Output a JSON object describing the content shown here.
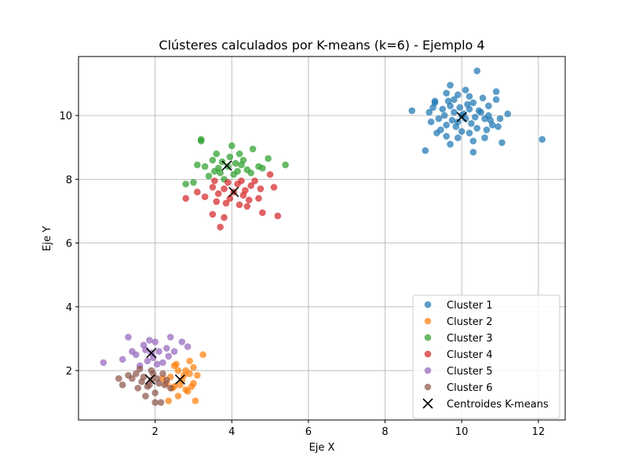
{
  "chart_data": {
    "type": "scatter",
    "title": "Clústeres calculados por K-means (k=6) - Ejemplo 4",
    "xlabel": "Eje X",
    "ylabel": "Eje Y",
    "xlim": [
      0.0,
      12.7
    ],
    "ylim": [
      0.45,
      11.85
    ],
    "xticks": [
      2,
      4,
      6,
      8,
      10,
      12
    ],
    "yticks": [
      2,
      4,
      6,
      8,
      10
    ],
    "grid": true,
    "legend_position": "lower-right",
    "series": [
      {
        "name": "Cluster 1",
        "color": "#1f77b4",
        "points": [
          [
            10.0,
            10.0
          ],
          [
            9.8,
            10.1
          ],
          [
            10.2,
            10.2
          ],
          [
            9.9,
            9.8
          ],
          [
            10.1,
            9.9
          ],
          [
            9.7,
            10.3
          ],
          [
            10.3,
            10.4
          ],
          [
            9.6,
            9.7
          ],
          [
            10.4,
            9.6
          ],
          [
            10.5,
            10.1
          ],
          [
            9.5,
            10.2
          ],
          [
            10.2,
            10.6
          ],
          [
            9.8,
            10.5
          ],
          [
            10.6,
            9.9
          ],
          [
            9.4,
            9.9
          ],
          [
            10.0,
            9.5
          ],
          [
            10.7,
            10.3
          ],
          [
            9.3,
            10.4
          ],
          [
            10.1,
            10.8
          ],
          [
            9.9,
            9.3
          ],
          [
            10.8,
            9.7
          ],
          [
            9.2,
            9.8
          ],
          [
            10.3,
            9.2
          ],
          [
            9.7,
            9.1
          ],
          [
            10.9,
            10.5
          ],
          [
            9.6,
            10.7
          ],
          [
            10.4,
            11.4
          ],
          [
            9.7,
            10.95
          ],
          [
            11.2,
            10.05
          ],
          [
            8.7,
            10.15
          ],
          [
            9.05,
            8.9
          ],
          [
            10.3,
            8.85
          ],
          [
            12.1,
            9.25
          ],
          [
            11.05,
            9.15
          ],
          [
            10.9,
            10.75
          ],
          [
            9.3,
            10.45
          ],
          [
            10.6,
            9.3
          ],
          [
            9.85,
            9.65
          ],
          [
            10.15,
            10.35
          ],
          [
            9.55,
            10.0
          ],
          [
            10.45,
            10.15
          ],
          [
            9.95,
            10.25
          ],
          [
            10.25,
            9.75
          ],
          [
            9.75,
            9.85
          ],
          [
            10.05,
            10.05
          ],
          [
            10.55,
            10.55
          ],
          [
            9.45,
            9.55
          ],
          [
            10.75,
            9.85
          ],
          [
            9.25,
            10.25
          ],
          [
            10.65,
            9.55
          ],
          [
            9.65,
            10.45
          ],
          [
            10.35,
            9.95
          ],
          [
            9.9,
            10.65
          ],
          [
            10.95,
            9.65
          ],
          [
            9.35,
            9.45
          ],
          [
            10.2,
            9.45
          ],
          [
            9.6,
            9.35
          ],
          [
            10.7,
            10.0
          ],
          [
            9.15,
            10.1
          ],
          [
            11.0,
            9.9
          ]
        ]
      },
      {
        "name": "Cluster 2",
        "color": "#ff7f0e",
        "points": [
          [
            2.7,
            1.7
          ],
          [
            2.5,
            1.5
          ],
          [
            2.9,
            1.9
          ],
          [
            2.6,
            2.0
          ],
          [
            2.8,
            1.4
          ],
          [
            2.4,
            1.8
          ],
          [
            3.0,
            1.6
          ],
          [
            2.55,
            2.2
          ],
          [
            2.9,
            2.3
          ],
          [
            3.25,
            2.5
          ],
          [
            3.0,
            2.1
          ],
          [
            2.35,
            1.05
          ],
          [
            2.6,
            1.2
          ],
          [
            3.05,
            1.05
          ],
          [
            2.85,
            1.35
          ],
          [
            2.45,
            1.45
          ],
          [
            2.75,
            1.85
          ],
          [
            2.65,
            1.55
          ],
          [
            2.3,
            1.6
          ],
          [
            3.1,
            1.85
          ],
          [
            2.5,
            2.15
          ],
          [
            2.8,
            2.0
          ],
          [
            2.2,
            1.75
          ],
          [
            2.95,
            1.5
          ]
        ]
      },
      {
        "name": "Cluster 3",
        "color": "#2ca02c",
        "points": [
          [
            3.9,
            8.4
          ],
          [
            4.1,
            8.5
          ],
          [
            3.7,
            8.2
          ],
          [
            4.2,
            8.8
          ],
          [
            3.5,
            8.6
          ],
          [
            4.4,
            8.3
          ],
          [
            3.3,
            8.4
          ],
          [
            4.0,
            9.05
          ],
          [
            3.2,
            9.25
          ],
          [
            3.2,
            9.2
          ],
          [
            4.55,
            8.95
          ],
          [
            5.4,
            8.45
          ],
          [
            4.95,
            8.65
          ],
          [
            2.8,
            7.85
          ],
          [
            3.0,
            7.9
          ],
          [
            4.7,
            8.4
          ],
          [
            3.6,
            8.8
          ],
          [
            3.8,
            8.0
          ],
          [
            4.3,
            8.6
          ],
          [
            3.4,
            8.1
          ],
          [
            4.5,
            8.2
          ],
          [
            3.1,
            8.45
          ],
          [
            4.8,
            8.35
          ],
          [
            3.95,
            8.7
          ],
          [
            4.15,
            8.25
          ],
          [
            3.65,
            8.35
          ],
          [
            4.05,
            8.15
          ],
          [
            3.75,
            8.55
          ],
          [
            4.25,
            8.45
          ],
          [
            3.55,
            8.25
          ]
        ]
      },
      {
        "name": "Cluster 4",
        "color": "#d62728",
        "points": [
          [
            4.05,
            7.6
          ],
          [
            3.8,
            7.7
          ],
          [
            4.3,
            7.5
          ],
          [
            3.6,
            7.3
          ],
          [
            4.5,
            7.8
          ],
          [
            3.9,
            7.9
          ],
          [
            4.2,
            7.2
          ],
          [
            3.5,
            7.75
          ],
          [
            4.7,
            7.4
          ],
          [
            3.7,
            6.5
          ],
          [
            3.5,
            6.9
          ],
          [
            3.8,
            6.8
          ],
          [
            4.8,
            6.95
          ],
          [
            5.2,
            6.85
          ],
          [
            5.1,
            7.75
          ],
          [
            5.0,
            8.15
          ],
          [
            4.4,
            7.15
          ],
          [
            2.8,
            7.4
          ],
          [
            3.1,
            7.6
          ],
          [
            4.6,
            7.95
          ],
          [
            3.95,
            7.4
          ],
          [
            4.15,
            7.85
          ],
          [
            3.65,
            7.55
          ],
          [
            4.35,
            7.65
          ],
          [
            3.85,
            7.25
          ],
          [
            4.25,
            7.95
          ],
          [
            3.3,
            7.45
          ],
          [
            4.75,
            7.7
          ],
          [
            3.55,
            7.95
          ],
          [
            4.45,
            7.35
          ]
        ]
      },
      {
        "name": "Cluster 5",
        "color": "#9467bd",
        "points": [
          [
            1.9,
            2.55
          ],
          [
            1.7,
            2.8
          ],
          [
            2.1,
            2.6
          ],
          [
            1.8,
            2.3
          ],
          [
            2.3,
            2.7
          ],
          [
            1.5,
            2.5
          ],
          [
            2.0,
            2.9
          ],
          [
            1.3,
            3.05
          ],
          [
            2.4,
            3.05
          ],
          [
            2.7,
            2.9
          ],
          [
            2.85,
            2.75
          ],
          [
            0.65,
            2.25
          ],
          [
            1.15,
            2.35
          ],
          [
            1.6,
            2.15
          ],
          [
            2.2,
            2.25
          ],
          [
            1.95,
            2.4
          ],
          [
            1.75,
            2.65
          ],
          [
            2.5,
            2.6
          ],
          [
            1.85,
            2.95
          ],
          [
            2.05,
            2.2
          ],
          [
            1.4,
            2.6
          ],
          [
            2.35,
            2.45
          ]
        ]
      },
      {
        "name": "Cluster 6",
        "color": "#8c564b",
        "points": [
          [
            1.9,
            1.7
          ],
          [
            1.7,
            1.8
          ],
          [
            2.1,
            1.6
          ],
          [
            1.5,
            1.9
          ],
          [
            2.2,
            1.9
          ],
          [
            1.8,
            1.5
          ],
          [
            2.0,
            1.3
          ],
          [
            1.6,
            2.05
          ],
          [
            2.3,
            1.7
          ],
          [
            1.4,
            1.75
          ],
          [
            2.0,
            1.0
          ],
          [
            2.15,
            1.0
          ],
          [
            1.15,
            1.55
          ],
          [
            1.05,
            1.75
          ],
          [
            1.3,
            1.85
          ],
          [
            1.75,
            1.2
          ],
          [
            2.4,
            1.45
          ],
          [
            1.95,
            1.9
          ],
          [
            1.85,
            1.55
          ],
          [
            2.05,
            1.75
          ],
          [
            1.65,
            1.65
          ],
          [
            2.25,
            1.55
          ],
          [
            1.55,
            1.45
          ],
          [
            1.9,
            2.0
          ]
        ]
      }
    ],
    "centroids": {
      "name": "Centroides K-means",
      "color": "#000000",
      "points": [
        [
          10.0,
          9.95
        ],
        [
          2.65,
          1.72
        ],
        [
          3.87,
          8.43
        ],
        [
          4.05,
          7.6
        ],
        [
          1.9,
          2.55
        ],
        [
          1.87,
          1.72
        ]
      ]
    }
  }
}
